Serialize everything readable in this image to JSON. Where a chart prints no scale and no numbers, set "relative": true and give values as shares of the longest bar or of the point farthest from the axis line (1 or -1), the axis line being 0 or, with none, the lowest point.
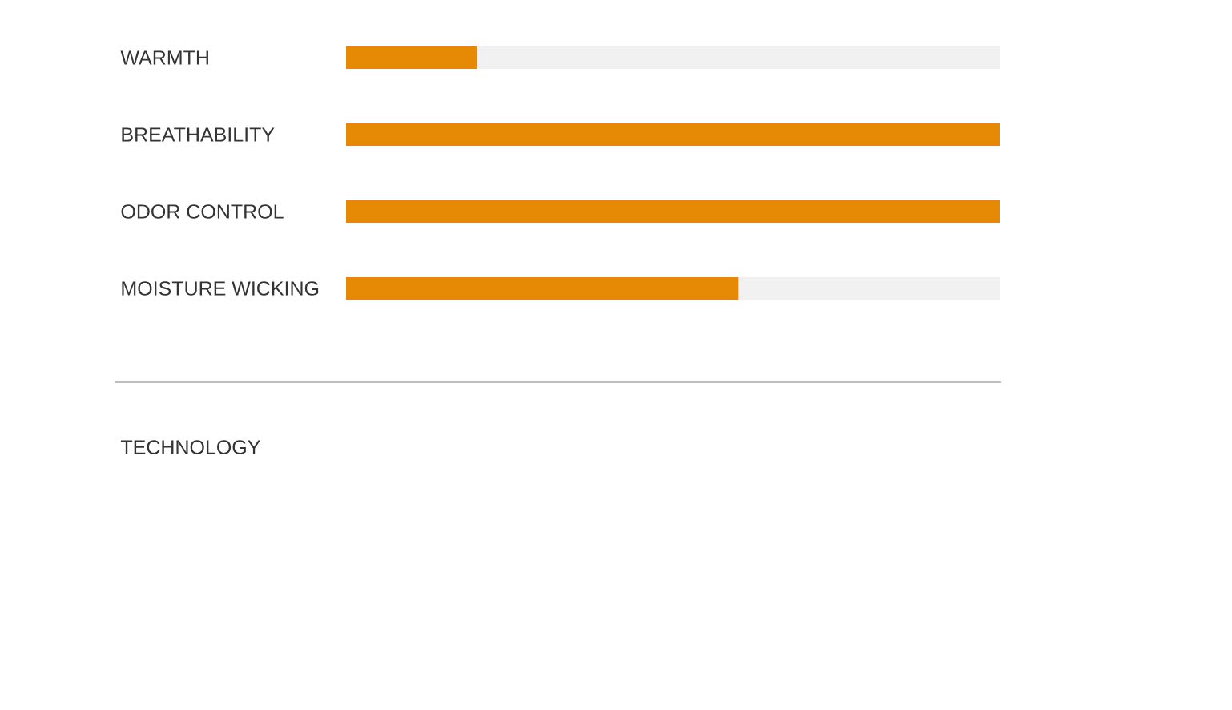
{
  "chart_data": {
    "type": "bar",
    "orientation": "horizontal",
    "stacked": true,
    "relative": true,
    "categories": [
      "WARMTH",
      "BREATHABILITY",
      "ODOR CONTROL",
      "MOISTURE WICKING"
    ],
    "series": [
      {
        "color": "#e68a06",
        "values": [
          0.2,
          1,
          1,
          0.6
        ]
      },
      {
        "color": "#f1f1f1",
        "values": [
          0.8,
          null,
          null,
          0.4
        ]
      }
    ],
    "annotations": [
      "TECHNOLOGY"
    ]
  }
}
